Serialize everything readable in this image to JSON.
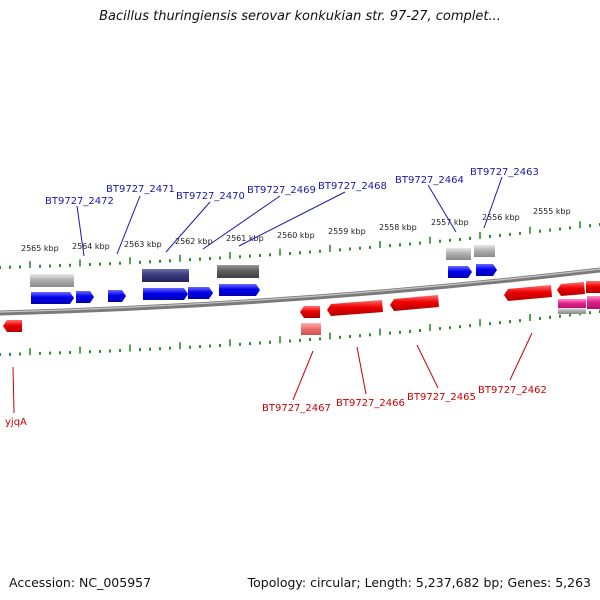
{
  "title": "Bacillus thuringiensis serovar konkukian str. 97-27, complet...",
  "footer": {
    "accession": "Accession: NC_005957",
    "topology": "Topology: circular; Length: 5,237,682 bp; Genes: 5,263"
  },
  "colors": {
    "backbone": "#7a7a7a",
    "ruler_ticks": "#2e8b2e",
    "forward_gene": "#0000ee",
    "forward_label": "#1a1aaa",
    "reverse_gene": "#ee0000",
    "reverse_label": "#cc0000",
    "rna_gene": "#9a9a9a",
    "pseudo_gene": "#333377",
    "misc_gene": "#e0208a"
  },
  "upper_ruler_labels": [
    "2565 kbp",
    "2564 kbp",
    "2563 kbp",
    "2562 kbp",
    "2561 kbp",
    "2560 kbp",
    "2559 kbp",
    "2558 kbp",
    "2557 kbp",
    "2556 kbp",
    "2555 kbp"
  ],
  "forward_gene_labels": [
    "BT9727_2472",
    "BT9727_2471",
    "BT9727_2470",
    "BT9727_2469",
    "BT9727_2468",
    "BT9727_2464",
    "BT9727_2463"
  ],
  "reverse_gene_labels": [
    "yjqA",
    "BT9727_2467",
    "BT9727_2466",
    "BT9727_2465",
    "BT9727_2462"
  ]
}
